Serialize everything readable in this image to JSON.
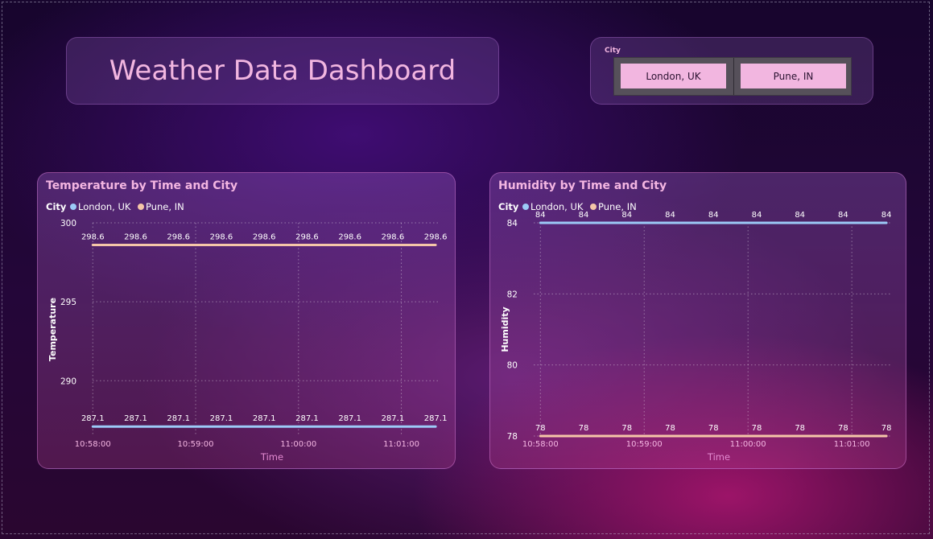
{
  "header": {
    "title": "Weather Data Dashboard"
  },
  "slicer": {
    "label": "City",
    "options": [
      "London, UK",
      "Pune, IN"
    ]
  },
  "colors": {
    "london": "#9ccaf7",
    "pune": "#f5c6a8",
    "accent": "#f2b6e0"
  },
  "chart_data": [
    {
      "type": "line",
      "title": "Temperature by Time and City",
      "legend_title": "City",
      "legend_position": "top-left",
      "xlabel": "Time",
      "ylabel": "Temperature",
      "grid": true,
      "ylim": [
        286.5,
        300
      ],
      "y_ticks": [
        290,
        295,
        300
      ],
      "x_start": "10:57:58",
      "x_end": "11:01:19",
      "x_ticks": [
        "10:58:00",
        "10:59:00",
        "11:00:00",
        "11:01:00"
      ],
      "series": [
        {
          "name": "London, UK",
          "color": "#9ccaf7",
          "x": [
            "10:58:00",
            "10:58:25",
            "10:58:50",
            "10:59:15",
            "10:59:40",
            "11:00:05",
            "11:00:30",
            "11:00:55",
            "11:01:20"
          ],
          "values": [
            287.1,
            287.1,
            287.1,
            287.1,
            287.1,
            287.1,
            287.1,
            287.1,
            287.1
          ]
        },
        {
          "name": "Pune, IN",
          "color": "#f5c6a8",
          "x": [
            "10:58:00",
            "10:58:25",
            "10:58:50",
            "10:59:15",
            "10:59:40",
            "11:00:05",
            "11:00:30",
            "11:00:55",
            "11:01:20"
          ],
          "values": [
            298.6,
            298.6,
            298.6,
            298.6,
            298.6,
            298.6,
            298.6,
            298.6,
            298.6
          ]
        }
      ]
    },
    {
      "type": "line",
      "title": "Humidity by Time and City",
      "legend_title": "City",
      "legend_position": "top-left",
      "xlabel": "Time",
      "ylabel": "Humidity",
      "grid": true,
      "ylim": [
        78,
        84
      ],
      "y_ticks": [
        78,
        80,
        82,
        84
      ],
      "x_start": "10:57:58",
      "x_end": "11:01:19",
      "x_ticks": [
        "10:58:00",
        "10:59:00",
        "11:00:00",
        "11:01:00"
      ],
      "series": [
        {
          "name": "London, UK",
          "color": "#9ccaf7",
          "x": [
            "10:58:00",
            "10:58:25",
            "10:58:50",
            "10:59:15",
            "10:59:40",
            "11:00:05",
            "11:00:30",
            "11:00:55",
            "11:01:20"
          ],
          "values": [
            84,
            84,
            84,
            84,
            84,
            84,
            84,
            84,
            84
          ]
        },
        {
          "name": "Pune, IN",
          "color": "#f5c6a8",
          "x": [
            "10:58:00",
            "10:58:25",
            "10:58:50",
            "10:59:15",
            "10:59:40",
            "11:00:05",
            "11:00:30",
            "11:00:55",
            "11:01:20"
          ],
          "values": [
            78,
            78,
            78,
            78,
            78,
            78,
            78,
            78,
            78
          ]
        }
      ]
    }
  ]
}
